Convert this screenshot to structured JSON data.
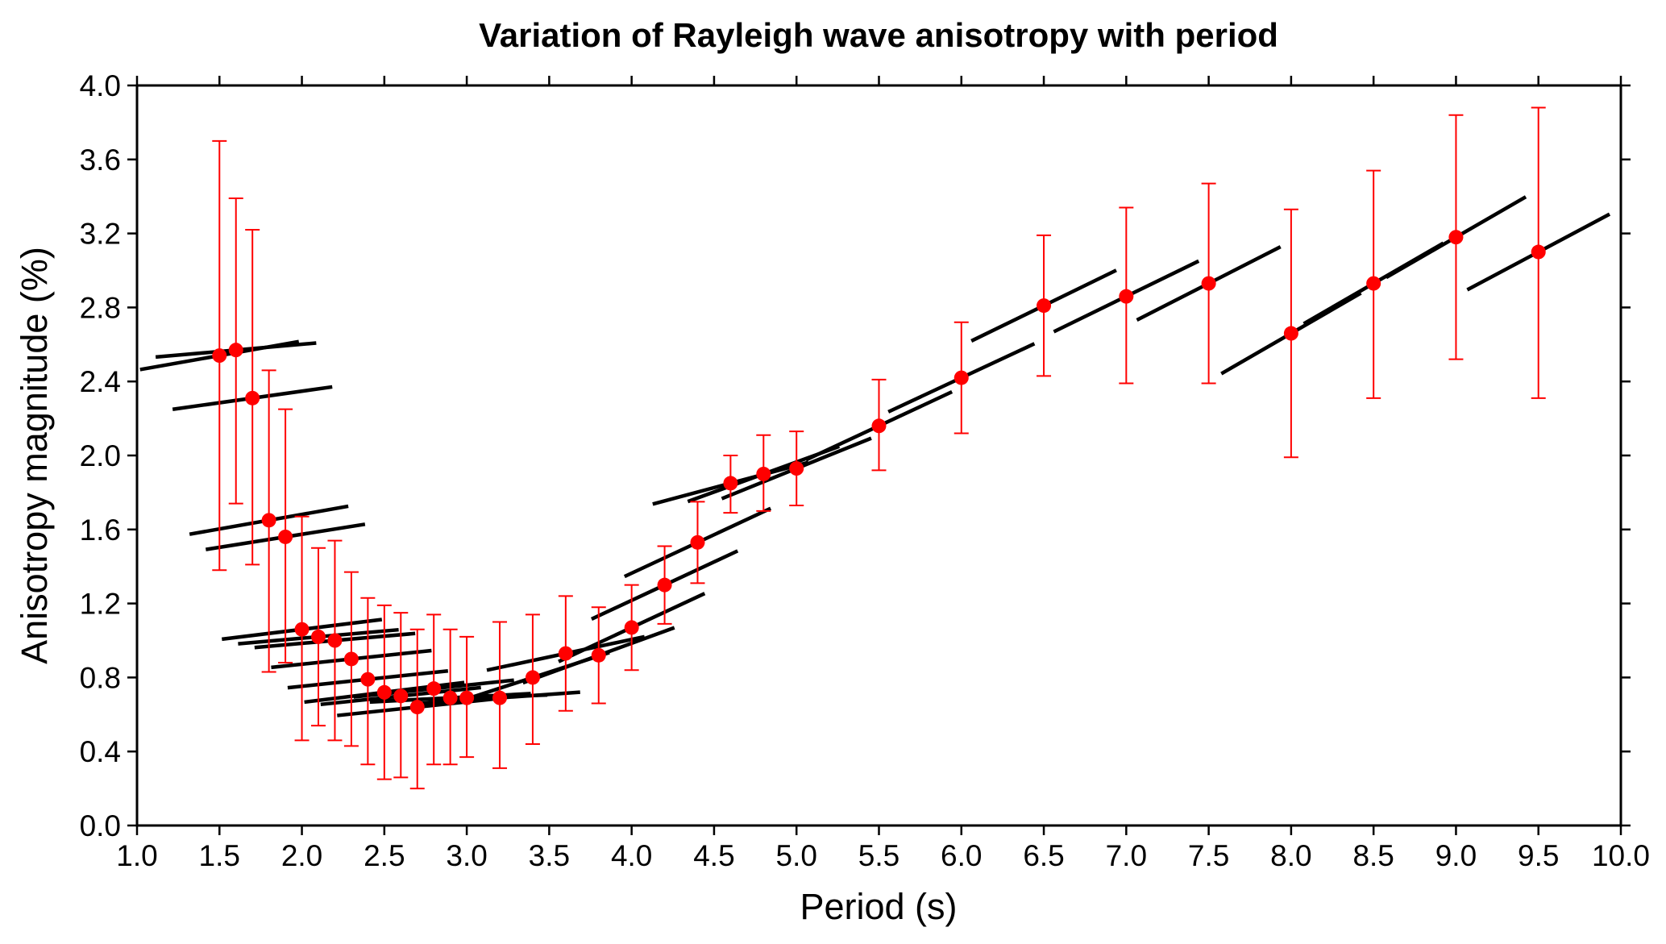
{
  "chart_data": {
    "type": "scatter",
    "title": "Variation of Rayleigh wave anisotropy with period",
    "xlabel": "Period (s)",
    "ylabel": "Anisotropy magnitude (%)",
    "xlim": [
      1.0,
      10.0
    ],
    "ylim": [
      0.0,
      4.0
    ],
    "xticks": [
      "1.0",
      "1.5",
      "2.0",
      "2.5",
      "3.0",
      "3.5",
      "4.0",
      "4.5",
      "5.0",
      "5.5",
      "6.0",
      "6.5",
      "7.0",
      "7.5",
      "8.0",
      "8.5",
      "9.0",
      "9.5",
      "10.0"
    ],
    "yticks": [
      "0.0",
      "0.4",
      "0.8",
      "1.2",
      "1.6",
      "2.0",
      "2.4",
      "2.8",
      "3.2",
      "3.6",
      "4.0"
    ],
    "grid": false,
    "legend": "none",
    "colors": {
      "points": "#ff0000",
      "error_bars": "#ff0000",
      "orientation_bars": "#000000"
    },
    "points": [
      {
        "x": 1.5,
        "y": 2.54,
        "low": 1.38,
        "high": 3.7,
        "bar_angle_deg": 10
      },
      {
        "x": 1.6,
        "y": 2.57,
        "low": 1.74,
        "high": 3.39,
        "bar_angle_deg": 5
      },
      {
        "x": 1.7,
        "y": 2.31,
        "low": 1.41,
        "high": 3.22,
        "bar_angle_deg": 8
      },
      {
        "x": 1.8,
        "y": 1.65,
        "low": 0.83,
        "high": 2.46,
        "bar_angle_deg": 10
      },
      {
        "x": 1.9,
        "y": 1.56,
        "low": 0.88,
        "high": 2.25,
        "bar_angle_deg": 9
      },
      {
        "x": 2.0,
        "y": 1.06,
        "low": 0.46,
        "high": 1.67,
        "bar_angle_deg": 7
      },
      {
        "x": 2.1,
        "y": 1.02,
        "low": 0.54,
        "high": 1.5,
        "bar_angle_deg": 5
      },
      {
        "x": 2.2,
        "y": 1.0,
        "low": 0.46,
        "high": 1.54,
        "bar_angle_deg": 5
      },
      {
        "x": 2.3,
        "y": 0.9,
        "low": 0.43,
        "high": 1.37,
        "bar_angle_deg": 6
      },
      {
        "x": 2.4,
        "y": 0.79,
        "low": 0.33,
        "high": 1.23,
        "bar_angle_deg": 6
      },
      {
        "x": 2.5,
        "y": 0.72,
        "low": 0.25,
        "high": 1.19,
        "bar_angle_deg": 7
      },
      {
        "x": 2.6,
        "y": 0.7,
        "low": 0.26,
        "high": 1.15,
        "bar_angle_deg": 6
      },
      {
        "x": 2.7,
        "y": 0.64,
        "low": 0.2,
        "high": 1.06,
        "bar_angle_deg": 6
      },
      {
        "x": 2.8,
        "y": 0.74,
        "low": 0.33,
        "high": 1.14,
        "bar_angle_deg": 6
      },
      {
        "x": 2.9,
        "y": 0.69,
        "low": 0.33,
        "high": 1.06,
        "bar_angle_deg": 3
      },
      {
        "x": 3.0,
        "y": 0.69,
        "low": 0.37,
        "high": 1.02,
        "bar_angle_deg": 2
      },
      {
        "x": 3.2,
        "y": 0.69,
        "low": 0.31,
        "high": 1.1,
        "bar_angle_deg": 4
      },
      {
        "x": 3.4,
        "y": 0.8,
        "low": 0.44,
        "high": 1.14,
        "bar_angle_deg": 18
      },
      {
        "x": 3.6,
        "y": 0.93,
        "low": 0.62,
        "high": 1.24,
        "bar_angle_deg": 12
      },
      {
        "x": 3.8,
        "y": 0.92,
        "low": 0.66,
        "high": 1.18,
        "bar_angle_deg": 20
      },
      {
        "x": 4.0,
        "y": 1.07,
        "low": 0.84,
        "high": 1.3,
        "bar_angle_deg": 25
      },
      {
        "x": 4.2,
        "y": 1.3,
        "low": 1.09,
        "high": 1.51,
        "bar_angle_deg": 25
      },
      {
        "x": 4.4,
        "y": 1.53,
        "low": 1.31,
        "high": 1.75,
        "bar_angle_deg": 25
      },
      {
        "x": 4.6,
        "y": 1.85,
        "low": 1.69,
        "high": 2.0,
        "bar_angle_deg": 15
      },
      {
        "x": 4.8,
        "y": 1.9,
        "low": 1.7,
        "high": 2.11,
        "bar_angle_deg": 20
      },
      {
        "x": 5.0,
        "y": 1.93,
        "low": 1.73,
        "high": 2.13,
        "bar_angle_deg": 22
      },
      {
        "x": 5.5,
        "y": 2.16,
        "low": 1.92,
        "high": 2.41,
        "bar_angle_deg": 25
      },
      {
        "x": 6.0,
        "y": 2.42,
        "low": 2.12,
        "high": 2.72,
        "bar_angle_deg": 25
      },
      {
        "x": 6.5,
        "y": 2.81,
        "low": 2.43,
        "high": 3.19,
        "bar_angle_deg": 26
      },
      {
        "x": 7.0,
        "y": 2.86,
        "low": 2.39,
        "high": 3.34,
        "bar_angle_deg": 26
      },
      {
        "x": 7.5,
        "y": 2.93,
        "low": 2.39,
        "high": 3.47,
        "bar_angle_deg": 27
      },
      {
        "x": 8.0,
        "y": 2.66,
        "low": 1.99,
        "high": 3.33,
        "bar_angle_deg": 30
      },
      {
        "x": 8.5,
        "y": 2.93,
        "low": 2.31,
        "high": 3.54,
        "bar_angle_deg": 30
      },
      {
        "x": 9.0,
        "y": 3.18,
        "low": 2.52,
        "high": 3.84,
        "bar_angle_deg": 30
      },
      {
        "x": 9.5,
        "y": 3.1,
        "low": 2.31,
        "high": 3.88,
        "bar_angle_deg": 28
      }
    ]
  }
}
